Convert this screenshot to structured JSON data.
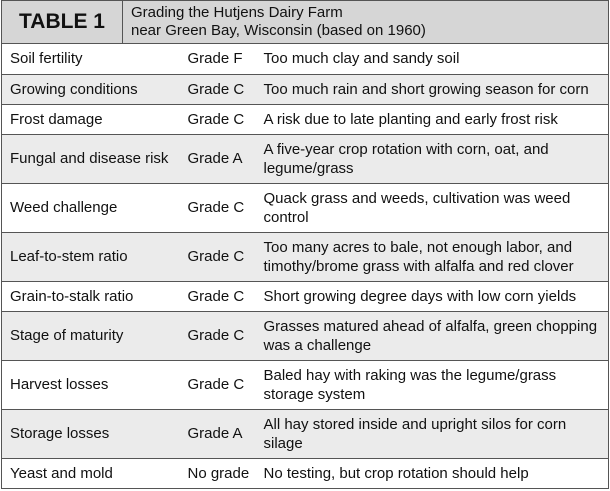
{
  "header": {
    "label": "TABLE 1",
    "title": [
      "Grading the Hutjens Dairy Farm",
      "near Green Bay, Wisconsin (based on 1960)"
    ]
  },
  "table": {
    "rows": [
      [
        "Soil fertility",
        "Grade F",
        "Too much clay and sandy soil"
      ],
      [
        "Growing conditions",
        "Grade C",
        "Too much rain and short growing season for corn"
      ],
      [
        "Frost damage",
        "Grade C",
        "A risk due to late planting and early frost risk"
      ],
      [
        "Fungal and disease risk",
        "Grade A",
        "A five-year crop rotation with corn, oat, and legume/grass"
      ],
      [
        "Weed challenge",
        "Grade C",
        "Quack grass and weeds, cultivation was weed control"
      ],
      [
        "Leaf-to-stem ratio",
        "Grade C",
        "Too many acres to bale, not enough labor, and timothy/brome grass with alfalfa and red clover"
      ],
      [
        "Grain-to-stalk ratio",
        "Grade C",
        "Short growing degree days with low corn yields"
      ],
      [
        "Stage of maturity",
        "Grade C",
        "Grasses matured ahead of alfalfa, green chopping was a challenge"
      ],
      [
        "Harvest losses",
        "Grade C",
        "Baled hay with raking was the legume/grass storage system"
      ],
      [
        "Storage losses",
        "Grade A",
        "All hay stored inside and upright silos for corn silage"
      ],
      [
        "Yeast and mold",
        "No grade",
        "No testing, but crop rotation should help"
      ]
    ]
  }
}
